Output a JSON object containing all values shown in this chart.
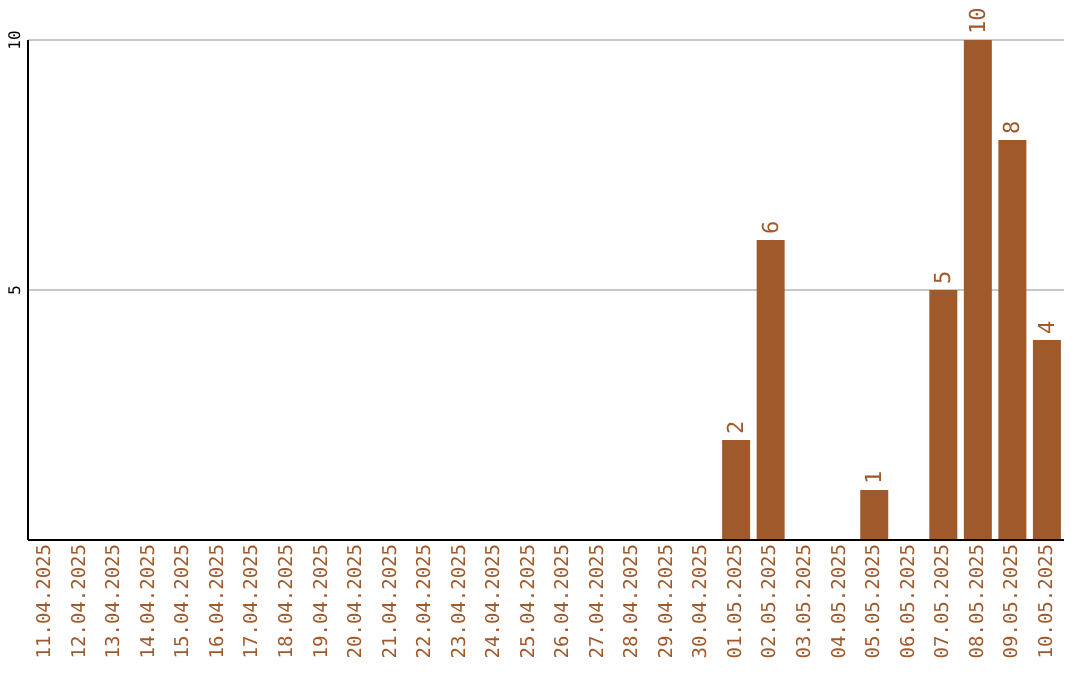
{
  "chart_data": {
    "type": "bar",
    "categories": [
      "11.04.2025",
      "12.04.2025",
      "13.04.2025",
      "14.04.2025",
      "15.04.2025",
      "16.04.2025",
      "17.04.2025",
      "18.04.2025",
      "19.04.2025",
      "20.04.2025",
      "21.04.2025",
      "22.04.2025",
      "23.04.2025",
      "24.04.2025",
      "25.04.2025",
      "26.04.2025",
      "27.04.2025",
      "28.04.2025",
      "29.04.2025",
      "30.04.2025",
      "01.05.2025",
      "02.05.2025",
      "03.05.2025",
      "04.05.2025",
      "05.05.2025",
      "06.05.2025",
      "07.05.2025",
      "08.05.2025",
      "09.05.2025",
      "10.05.2025"
    ],
    "values": [
      0,
      0,
      0,
      0,
      0,
      0,
      0,
      0,
      0,
      0,
      0,
      0,
      0,
      0,
      0,
      0,
      0,
      0,
      0,
      0,
      2,
      6,
      0,
      0,
      1,
      0,
      5,
      10,
      8,
      4
    ],
    "value_labels": [
      null,
      null,
      null,
      null,
      null,
      null,
      null,
      null,
      null,
      null,
      null,
      null,
      null,
      null,
      null,
      null,
      null,
      null,
      null,
      null,
      "2",
      "6",
      null,
      null,
      "1",
      null,
      "5",
      "10",
      "8",
      "4"
    ],
    "color": "#a0592a",
    "ylim": [
      0,
      10
    ],
    "yticks": [
      5,
      10
    ],
    "grid": "y"
  }
}
